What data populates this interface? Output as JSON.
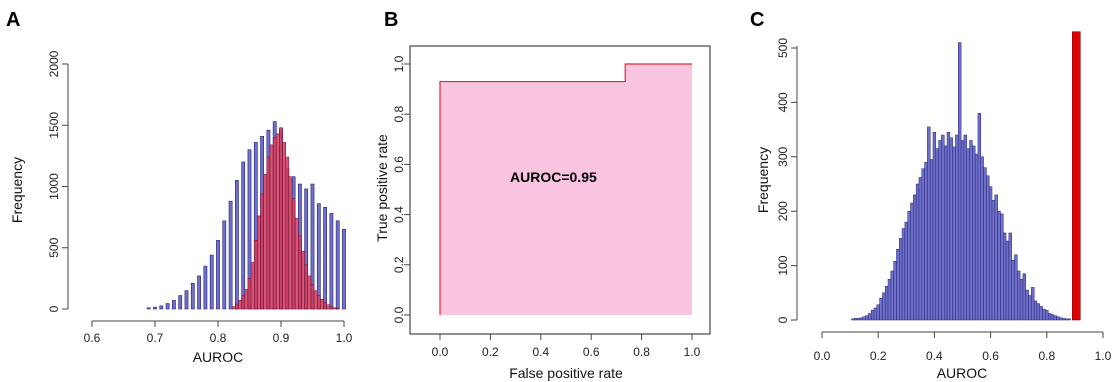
{
  "colors": {
    "histogram_blue": "#7070c8",
    "histogram_blue_edge": "#20207a",
    "overlay_red": "#d23a5a",
    "roc_fill": "#f9c4e0",
    "roc_line": "#e8262c",
    "observed_red": "#e00000"
  },
  "chart_data": [
    {
      "panel": "A",
      "type": "bar",
      "xlabel": "AUROC",
      "ylabel": "Frequency",
      "xlim": [
        0.6,
        1.0
      ],
      "ylim": [
        0,
        2000
      ],
      "xticks": [
        "0.6",
        "0.7",
        "0.8",
        "0.9",
        "1.0"
      ],
      "yticks": [
        "0",
        "500",
        "1000",
        "1500",
        "2000"
      ],
      "bin_width": 0.005,
      "series": [
        {
          "color": "blue",
          "x": [
            0.69,
            0.7,
            0.71,
            0.72,
            0.73,
            0.74,
            0.75,
            0.76,
            0.77,
            0.78,
            0.79,
            0.8,
            0.81,
            0.82,
            0.83,
            0.84,
            0.85,
            0.86,
            0.87,
            0.88,
            0.89,
            0.9,
            0.91,
            0.92,
            0.93,
            0.94,
            0.95,
            0.96,
            0.97,
            0.98,
            0.99,
            1.0
          ],
          "values": [
            10,
            15,
            25,
            45,
            70,
            110,
            150,
            210,
            270,
            350,
            440,
            560,
            720,
            880,
            1050,
            1200,
            1300,
            1360,
            1410,
            1460,
            1530,
            1470,
            1150,
            1080,
            1020,
            980,
            1020,
            860,
            830,
            780,
            720,
            650
          ]
        },
        {
          "color": "red",
          "x": [
            0.825,
            0.83,
            0.835,
            0.84,
            0.845,
            0.85,
            0.855,
            0.86,
            0.865,
            0.87,
            0.875,
            0.88,
            0.885,
            0.89,
            0.895,
            0.9,
            0.905,
            0.91,
            0.915,
            0.92,
            0.925,
            0.93,
            0.935,
            0.94,
            0.945,
            0.95,
            0.955,
            0.96,
            0.965,
            0.97,
            0.975,
            0.98,
            0.985,
            0.99
          ],
          "values": [
            20,
            40,
            70,
            110,
            160,
            250,
            380,
            560,
            760,
            940,
            1100,
            1240,
            1340,
            1400,
            1430,
            1480,
            1360,
            1240,
            1080,
            900,
            740,
            600,
            470,
            360,
            270,
            200,
            150,
            110,
            80,
            55,
            35,
            20,
            10,
            5
          ]
        }
      ]
    },
    {
      "panel": "B",
      "type": "area",
      "xlabel": "False positive rate",
      "ylabel": "True positive rate",
      "xlim": [
        0,
        1
      ],
      "ylim": [
        0,
        1
      ],
      "xticks": [
        "0.0",
        "0.2",
        "0.4",
        "0.6",
        "0.8",
        "1.0"
      ],
      "yticks": [
        "0.0",
        "0.2",
        "0.4",
        "0.6",
        "0.8",
        "1.0"
      ],
      "annotation": "AUROC=0.95",
      "annotation_pos": [
        0.45,
        0.53
      ],
      "x": [
        0,
        0,
        0.735,
        0.735,
        1.0
      ],
      "y": [
        0,
        0.93,
        0.93,
        1.0,
        1.0
      ]
    },
    {
      "panel": "C",
      "type": "bar",
      "xlabel": "AUROC",
      "ylabel": "Frequency",
      "xlim": [
        0.0,
        1.0
      ],
      "ylim": [
        0,
        500
      ],
      "xticks": [
        "0.0",
        "0.2",
        "0.4",
        "0.6",
        "0.8",
        "1.0"
      ],
      "yticks": [
        "0",
        "100",
        "200",
        "300",
        "400",
        "500"
      ],
      "bin_width": 0.01,
      "observed_value": 0.905,
      "observed_height": 530,
      "x": [
        0.11,
        0.12,
        0.13,
        0.14,
        0.15,
        0.16,
        0.17,
        0.18,
        0.19,
        0.2,
        0.21,
        0.22,
        0.23,
        0.24,
        0.25,
        0.26,
        0.27,
        0.28,
        0.29,
        0.3,
        0.31,
        0.32,
        0.33,
        0.34,
        0.35,
        0.36,
        0.37,
        0.38,
        0.39,
        0.4,
        0.41,
        0.42,
        0.43,
        0.44,
        0.45,
        0.46,
        0.47,
        0.48,
        0.49,
        0.5,
        0.51,
        0.52,
        0.53,
        0.54,
        0.55,
        0.56,
        0.57,
        0.58,
        0.59,
        0.6,
        0.61,
        0.62,
        0.63,
        0.64,
        0.65,
        0.66,
        0.67,
        0.68,
        0.69,
        0.7,
        0.71,
        0.72,
        0.73,
        0.74,
        0.75,
        0.76,
        0.77,
        0.78,
        0.79,
        0.8,
        0.81,
        0.82,
        0.83,
        0.84,
        0.85,
        0.86,
        0.87,
        0.88
      ],
      "values": [
        2,
        3,
        3,
        4,
        6,
        8,
        12,
        18,
        22,
        28,
        40,
        50,
        62,
        75,
        90,
        108,
        130,
        150,
        168,
        180,
        200,
        215,
        230,
        250,
        262,
        278,
        290,
        355,
        295,
        345,
        315,
        330,
        340,
        320,
        345,
        335,
        318,
        340,
        510,
        330,
        340,
        315,
        330,
        320,
        305,
        380,
        300,
        280,
        265,
        245,
        220,
        230,
        200,
        195,
        160,
        145,
        160,
        110,
        120,
        90,
        75,
        85,
        55,
        45,
        60,
        35,
        30,
        25,
        20,
        18,
        12,
        10,
        8,
        6,
        4,
        3,
        2,
        2
      ]
    }
  ]
}
